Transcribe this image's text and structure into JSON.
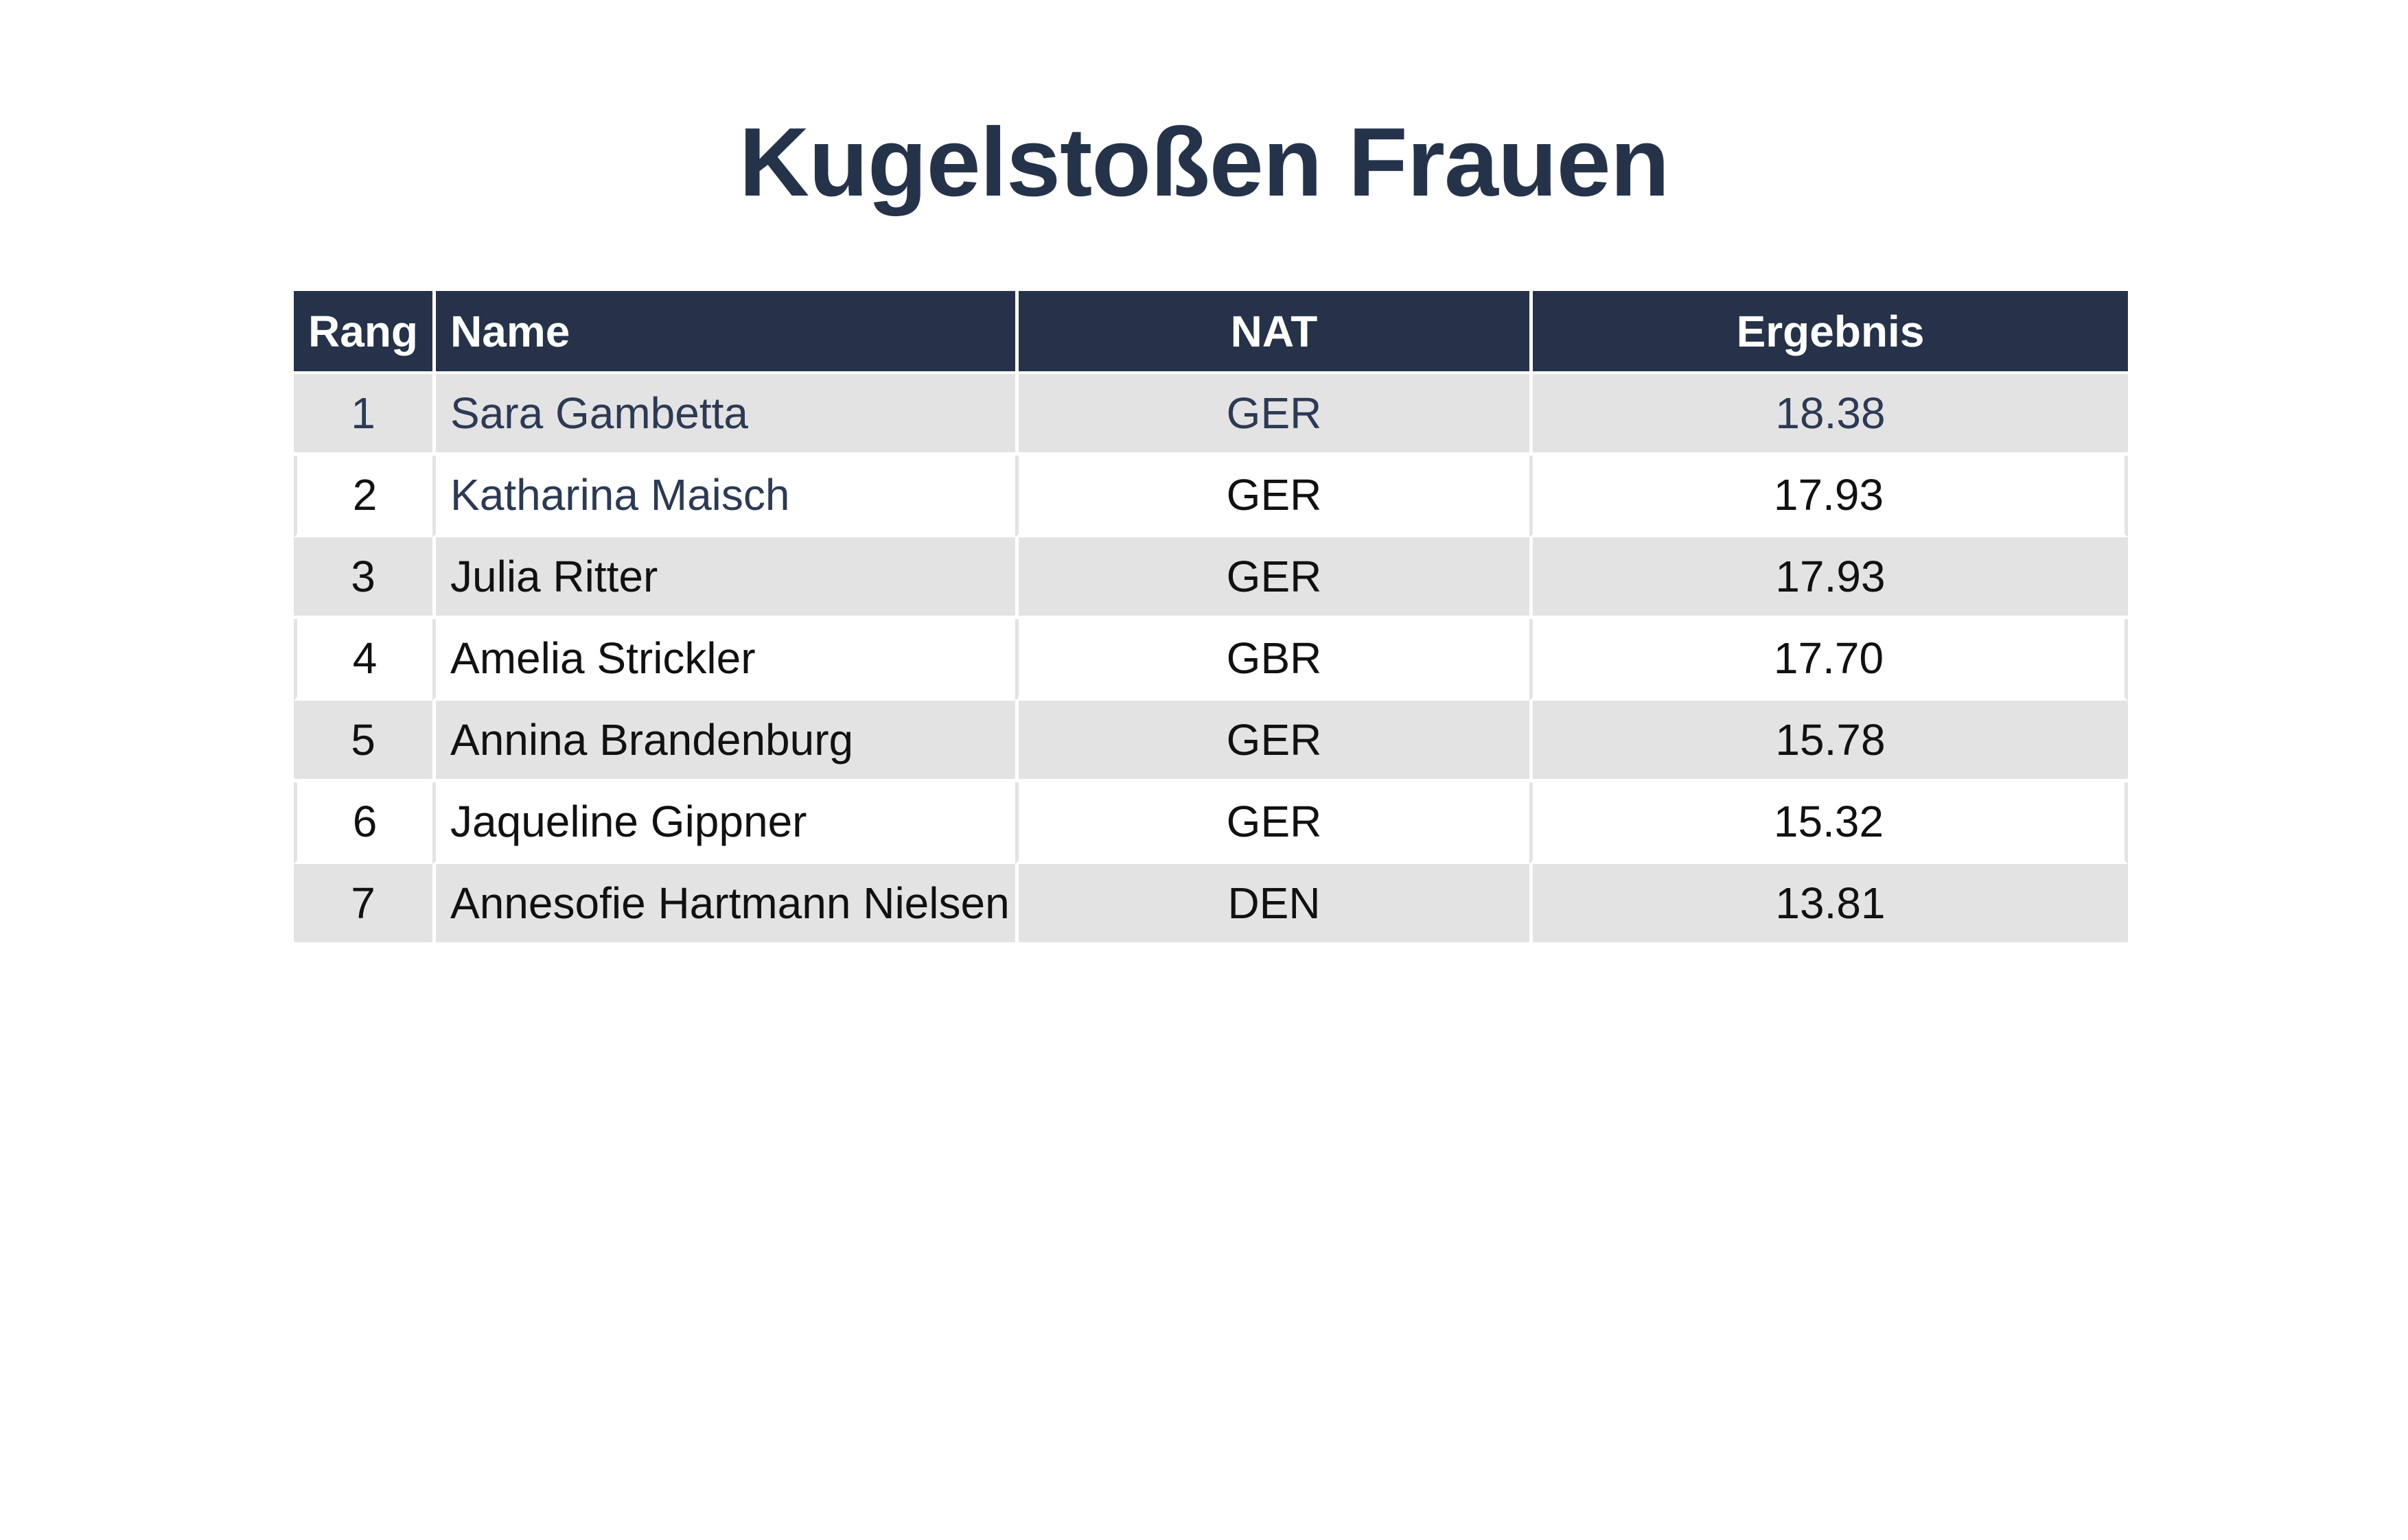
{
  "title": "Kugelstoßen Frauen",
  "table": {
    "headers": {
      "rank": "Rang",
      "name": "Name",
      "nat": "NAT",
      "result": "Ergebnis"
    },
    "rows": [
      {
        "rank": "1",
        "name": "Sara Gambetta",
        "nat": "GER",
        "result": "18.38"
      },
      {
        "rank": "2",
        "name": "Katharina Maisch",
        "nat": "GER",
        "result": "17.93"
      },
      {
        "rank": "3",
        "name": "Julia Ritter",
        "nat": "GER",
        "result": "17.93"
      },
      {
        "rank": "4",
        "name": "Amelia Strickler",
        "nat": "GBR",
        "result": "17.70"
      },
      {
        "rank": "5",
        "name": "Annina Brandenburg",
        "nat": "GER",
        "result": "15.78"
      },
      {
        "rank": "6",
        "name": "Jaqueline Gippner",
        "nat": "GER",
        "result": "15.32"
      },
      {
        "rank": "7",
        "name": "Annesofie Hartmann Nielsen",
        "nat": "DEN",
        "result": "13.81"
      }
    ]
  },
  "colors": {
    "header_bg": "#253249",
    "title_text": "#25334a",
    "stripe_bg": "#e3e3e3"
  }
}
